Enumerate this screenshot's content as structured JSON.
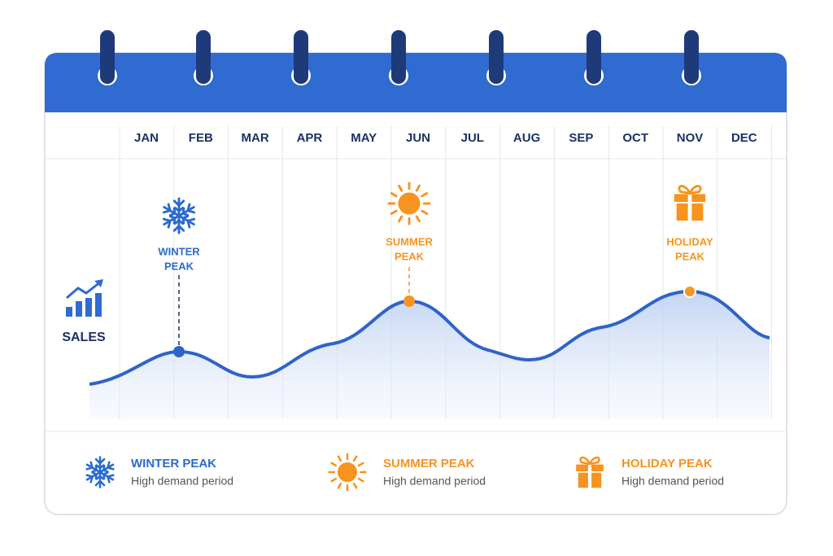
{
  "months": [
    "JAN",
    "FEB",
    "MAR",
    "APR",
    "MAY",
    "JUN",
    "JUL",
    "AUG",
    "SEP",
    "OCT",
    "NOV",
    "DEC"
  ],
  "y_label": "SALES",
  "annotations": [
    {
      "lines": [
        "WINTER",
        "PEAK"
      ]
    },
    {
      "lines": [
        "SUMMER",
        "PEAK"
      ]
    },
    {
      "lines": [
        "HOLIDAY",
        "PEAK"
      ]
    }
  ],
  "legend": [
    {
      "title": "WINTER PEAK",
      "description": "High demand period"
    },
    {
      "title": "SUMMER PEAK",
      "description": "High demand period"
    },
    {
      "title": "HOLIDAY PEAK",
      "description": "High demand period"
    }
  ]
}
